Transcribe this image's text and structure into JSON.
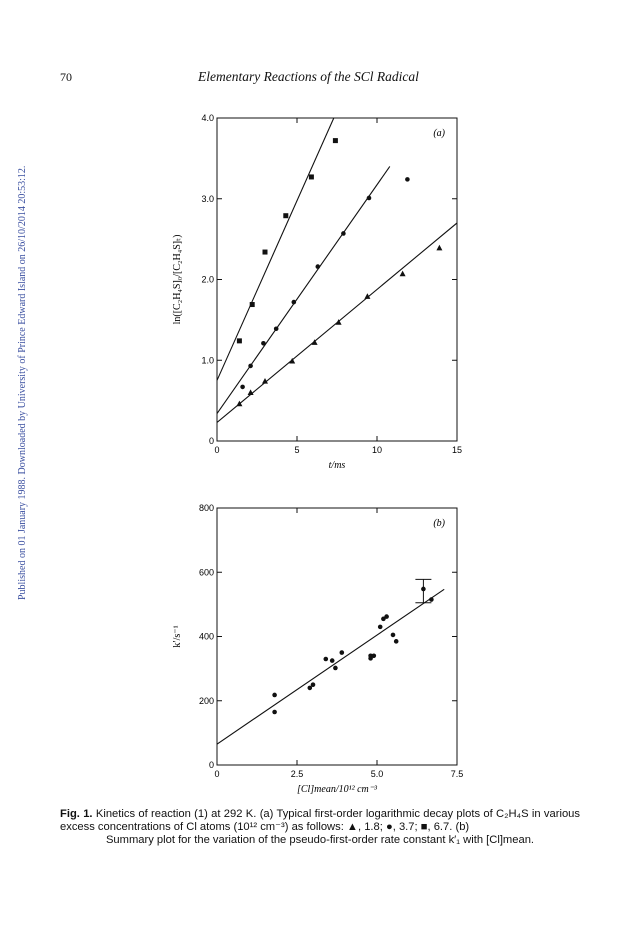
{
  "page": {
    "number": "70",
    "running_head": "Elementary Reactions of the SCl Radical",
    "sidebar_text": "Published on 01 January 1988. Downloaded by University of Prince Edward Island on 26/10/2014 20:53:12.",
    "caption_label": "Fig. 1.",
    "caption_line1": "Kinetics of reaction (1) at 292 K. (a) Typical first-order logarithmic decay plots of C₂H₄S",
    "caption_line2": "in various excess concentrations of Cl atoms (10¹² cm⁻³) as follows: ▲, 1.8; ●, 3.7; ■, 6.7. (b)",
    "caption_line3": "Summary plot for the variation of the pseudo-first-order rate constant k′₁ with [Cl]mean."
  },
  "chart_data": [
    {
      "type": "scatter",
      "panel_label": "(a)",
      "xlabel": "t/ms",
      "ylabel": "ln([C₂H₄S]₀/[C₂H₄S]ₜ)",
      "xlim": [
        0,
        15
      ],
      "ylim": [
        0,
        4.0
      ],
      "x_ticks": [
        "0",
        "5",
        "10",
        "15"
      ],
      "y_ticks": [
        "0",
        "1.0",
        "2.0",
        "3.0",
        "4.0"
      ],
      "series": [
        {
          "marker": "triangle",
          "points": [
            [
              1.4,
              0.46
            ],
            [
              2.1,
              0.6
            ],
            [
              3.0,
              0.74
            ],
            [
              4.7,
              0.99
            ],
            [
              6.1,
              1.22
            ],
            [
              7.6,
              1.47
            ],
            [
              9.4,
              1.79
            ],
            [
              11.6,
              2.07
            ],
            [
              13.9,
              2.39
            ]
          ],
          "fit": [
            [
              0,
              0.23
            ],
            [
              15,
              2.7
            ]
          ]
        },
        {
          "marker": "circle",
          "points": [
            [
              1.6,
              0.67
            ],
            [
              2.1,
              0.93
            ],
            [
              2.9,
              1.21
            ],
            [
              3.7,
              1.39
            ],
            [
              4.8,
              1.72
            ],
            [
              6.3,
              2.16
            ],
            [
              7.9,
              2.57
            ],
            [
              9.5,
              3.01
            ],
            [
              11.9,
              3.24
            ]
          ],
          "fit": [
            [
              0,
              0.34
            ],
            [
              10.8,
              3.4
            ]
          ]
        },
        {
          "marker": "square",
          "points": [
            [
              1.4,
              1.24
            ],
            [
              2.2,
              1.69
            ],
            [
              3.0,
              2.34
            ],
            [
              4.3,
              2.79
            ],
            [
              5.9,
              3.27
            ],
            [
              7.4,
              3.72
            ]
          ],
          "fit": [
            [
              0,
              0.75
            ],
            [
              7.3,
              4.0
            ]
          ]
        }
      ]
    },
    {
      "type": "scatter",
      "panel_label": "(b)",
      "xlabel": "[Cl]mean/10¹² cm⁻³",
      "ylabel": "k′/s⁻¹",
      "xlim": [
        0,
        7.5
      ],
      "ylim": [
        0,
        800
      ],
      "x_ticks": [
        "0",
        "2.5",
        "5.0",
        "7.5"
      ],
      "y_ticks": [
        "0",
        "200",
        "400",
        "600",
        "800"
      ],
      "series": [
        {
          "marker": "circle",
          "points": [
            [
              1.8,
              218
            ],
            [
              1.8,
              165
            ],
            [
              2.9,
              240
            ],
            [
              3.0,
              250
            ],
            [
              3.4,
              330
            ],
            [
              3.6,
              325
            ],
            [
              3.7,
              302
            ],
            [
              3.9,
              350
            ],
            [
              4.8,
              332
            ],
            [
              4.8,
              340
            ],
            [
              4.9,
              340
            ],
            [
              5.1,
              430
            ],
            [
              5.2,
              455
            ],
            [
              5.3,
              462
            ],
            [
              5.5,
              405
            ],
            [
              5.6,
              385
            ],
            [
              6.45,
              548
            ],
            [
              6.7,
              515
            ]
          ],
          "fit": [
            [
              0,
              65
            ],
            [
              7.1,
              547
            ]
          ]
        }
      ],
      "error_bar": {
        "x": 6.45,
        "y": 548,
        "low": 505,
        "high": 578
      }
    }
  ]
}
